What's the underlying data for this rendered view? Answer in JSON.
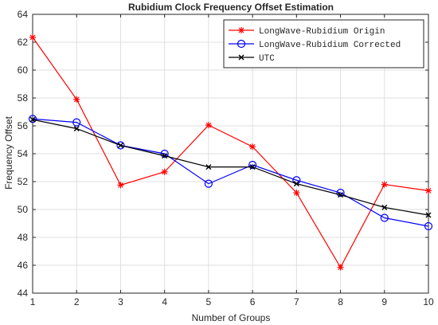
{
  "chart_data": {
    "type": "line",
    "title": "Rubidium Clock Frequency Offset Estimation",
    "xlabel": "Number of Groups",
    "ylabel": "Frequency Offset",
    "x": [
      1,
      2,
      3,
      4,
      5,
      6,
      7,
      8,
      9,
      10
    ],
    "xlim": [
      1,
      10
    ],
    "ylim": [
      44,
      64
    ],
    "xticks": [
      1,
      2,
      3,
      4,
      5,
      6,
      7,
      8,
      9,
      10
    ],
    "yticks": [
      44,
      46,
      48,
      50,
      52,
      54,
      56,
      58,
      60,
      62,
      64
    ],
    "grid": true,
    "legend_position": "top-right",
    "series": [
      {
        "name": "LongWave-Rubidium Origin",
        "color": "#ff0000",
        "marker": "asterisk",
        "values": [
          62.35,
          57.9,
          51.75,
          52.7,
          56.05,
          54.5,
          51.2,
          45.85,
          51.8,
          51.35
        ]
      },
      {
        "name": "LongWave-Rubidium Corrected",
        "color": "#0000ff",
        "marker": "circle",
        "values": [
          56.5,
          56.25,
          54.6,
          54.0,
          51.85,
          53.2,
          52.1,
          51.2,
          49.4,
          48.8
        ]
      },
      {
        "name": "UTC",
        "color": "#000000",
        "marker": "x",
        "values": [
          56.45,
          55.8,
          54.6,
          53.85,
          53.05,
          53.05,
          51.85,
          51.05,
          50.15,
          49.6
        ]
      }
    ]
  }
}
